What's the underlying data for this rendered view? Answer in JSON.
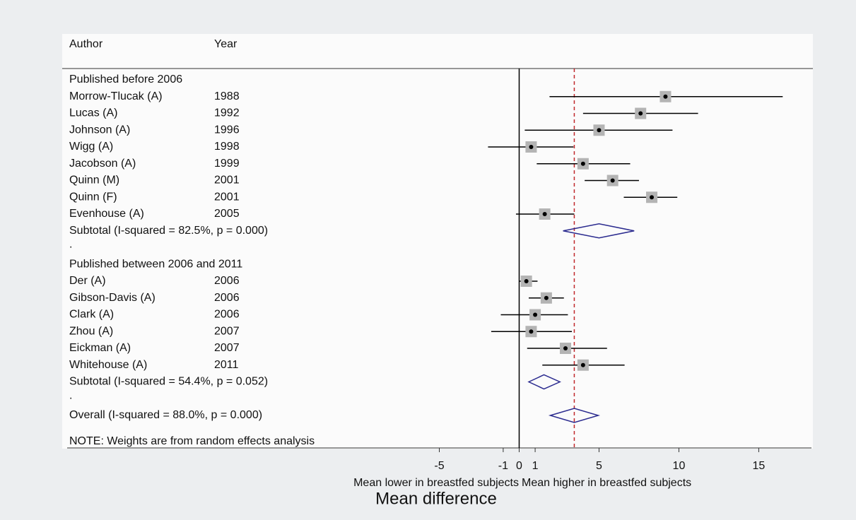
{
  "chart_data": {
    "type": "forest",
    "headers": [
      "Author",
      "Year"
    ],
    "groups": [
      {
        "title": "Published before 2006",
        "studies": [
          {
            "author": "Morrow-Tlucak (A)",
            "year": "1988",
            "estimate": 9.16,
            "ci": [
              1.9,
              16.5
            ]
          },
          {
            "author": "Lucas (A)",
            "year": "1992",
            "estimate": 7.6,
            "ci": [
              4.0,
              11.2
            ]
          },
          {
            "author": "Johnson (A)",
            "year": "1996",
            "estimate": 5.0,
            "ci": [
              0.35,
              9.6
            ]
          },
          {
            "author": "Wigg (A)",
            "year": "1998",
            "estimate": 0.75,
            "ci": [
              -1.95,
              3.4
            ]
          },
          {
            "author": "Jacobson (A)",
            "year": "1999",
            "estimate": 4.0,
            "ci": [
              1.1,
              6.95
            ]
          },
          {
            "author": "Quinn (M)",
            "year": "2001",
            "estimate": 5.85,
            "ci": [
              4.1,
              7.5
            ]
          },
          {
            "author": "Quinn (F)",
            "year": "2001",
            "estimate": 8.3,
            "ci": [
              6.55,
              9.9
            ]
          },
          {
            "author": "Evenhouse (A)",
            "year": "2005",
            "estimate": 1.6,
            "ci": [
              -0.2,
              3.45
            ]
          }
        ],
        "subtotal": {
          "label": "Subtotal  (I-squared = 82.5%, p = 0.000)",
          "estimate": 5.0,
          "ci": [
            2.75,
            7.2
          ]
        },
        "separator": "."
      },
      {
        "title": "Published between 2006 and 2011",
        "studies": [
          {
            "author": "Der (A)",
            "year": "2006",
            "estimate": 0.45,
            "ci": [
              0.0,
              1.15
            ]
          },
          {
            "author": "Gibson-Davis (A)",
            "year": "2006",
            "estimate": 1.7,
            "ci": [
              0.6,
              2.8
            ]
          },
          {
            "author": "Clark (A)",
            "year": "2006",
            "estimate": 1.0,
            "ci": [
              -1.15,
              3.05
            ]
          },
          {
            "author": "Zhou (A)",
            "year": "2007",
            "estimate": 0.75,
            "ci": [
              -1.75,
              3.3
            ]
          },
          {
            "author": "Eickman (A)",
            "year": "2007",
            "estimate": 2.9,
            "ci": [
              0.5,
              5.5
            ]
          },
          {
            "author": "Whitehouse (A)",
            "year": "2011",
            "estimate": 4.0,
            "ci": [
              1.45,
              6.6
            ]
          }
        ],
        "subtotal": {
          "label": "Subtotal  (I-squared = 54.4%, p = 0.052)",
          "estimate": 1.55,
          "ci": [
            0.6,
            2.55
          ]
        },
        "separator": "."
      }
    ],
    "overall": {
      "label": "Overall  (I-squared = 88.0%, p = 0.000)",
      "estimate": 3.45,
      "ci": [
        1.95,
        4.95
      ]
    },
    "note": "NOTE: Weights are from random effects analysis",
    "xlim": [
      -28.3,
      18.3
    ],
    "xticks": [
      -5,
      -1,
      0,
      1,
      5,
      10,
      15
    ],
    "xlabel_left": "Mean lower in breastfed subjects",
    "xlabel_right": "Mean higher in breastfed subjects",
    "xlabel": "Mean difference",
    "colors": {
      "box": "#b4b4b4",
      "point": "#000000",
      "ci": "#000000",
      "diamond": "#2b2b8f",
      "reference": "#c0282c"
    }
  }
}
